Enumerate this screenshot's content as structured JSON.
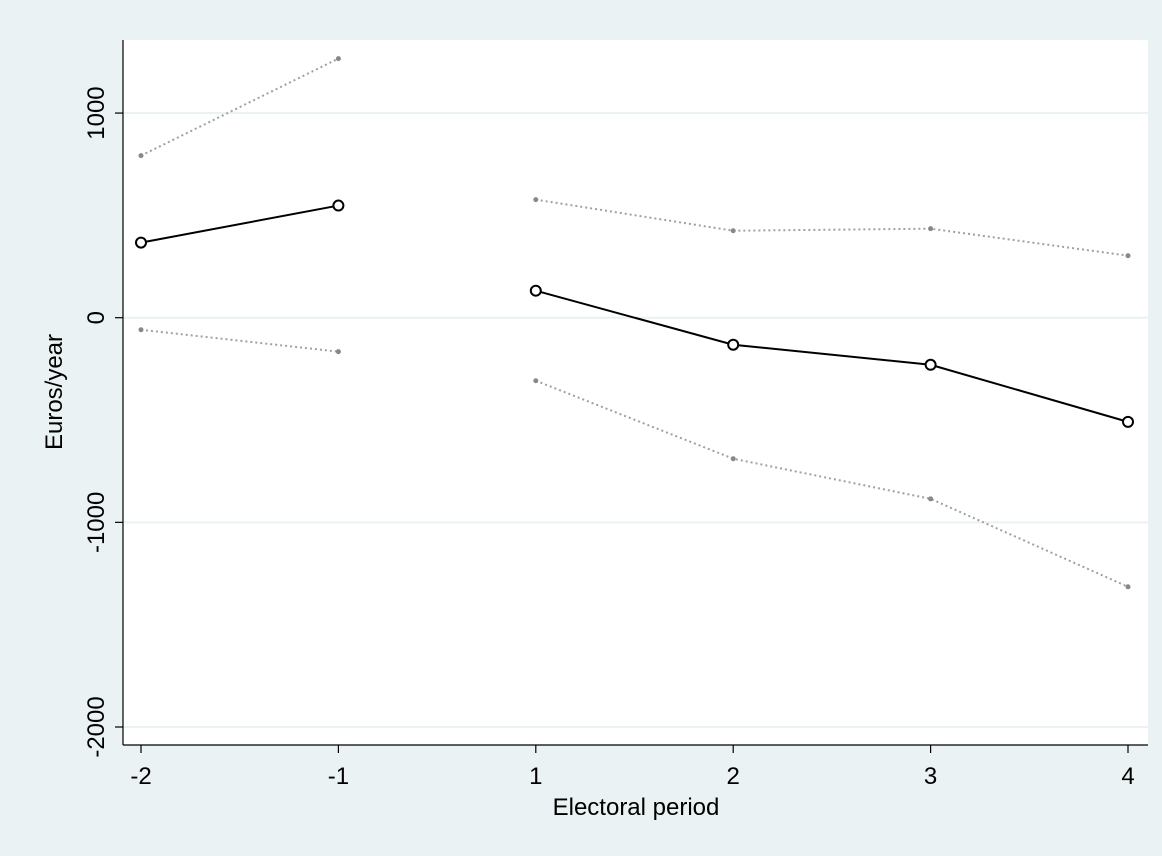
{
  "chart_data": {
    "type": "line",
    "x_label": "Electoral period",
    "y_label": "Euros/year",
    "categories": [
      "-2",
      "-1",
      "1",
      "2",
      "3",
      "4"
    ],
    "series": [
      {
        "color": "#000000",
        "line_style": "solid",
        "marker": "circle",
        "values": [
          367,
          548,
          null,
          null,
          null,
          null
        ]
      },
      {
        "color": "#000000",
        "line_style": "solid",
        "marker": "circle",
        "values": [
          null,
          null,
          132,
          -132,
          -230,
          -509
        ]
      },
      {
        "color": "#a0a0a0",
        "line_style": "dotted",
        "marker": "dot",
        "values": [
          792,
          1266,
          null,
          null,
          null,
          null
        ]
      },
      {
        "color": "#a0a0a0",
        "line_style": "dotted",
        "marker": "dot",
        "values": [
          null,
          null,
          577,
          425,
          435,
          303
        ]
      },
      {
        "color": "#a0a0a0",
        "line_style": "dotted",
        "marker": "dot",
        "values": [
          -59,
          -166,
          null,
          null,
          null,
          null
        ]
      },
      {
        "color": "#a0a0a0",
        "line_style": "dotted",
        "marker": "dot",
        "values": [
          null,
          null,
          -308,
          -689,
          -885,
          -1315
        ]
      }
    ],
    "ylim": [
      -2088,
      1357
    ],
    "yticks": [
      -2000,
      -1000,
      0,
      1000
    ],
    "grid": true
  }
}
